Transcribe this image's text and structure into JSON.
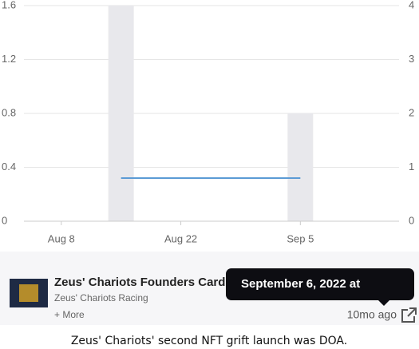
{
  "chart_data": {
    "type": "bar-line",
    "x": [
      "Aug 15",
      "Sep 5"
    ],
    "xlim": [
      "Aug 4",
      "Sep 16"
    ],
    "xticks": [
      "Aug 8",
      "Aug 22",
      "Sep 5"
    ],
    "ylim": [
      0,
      1.6
    ],
    "yticks": [
      0,
      0.4,
      0.8,
      1.2,
      1.6
    ],
    "y2lim": [
      0,
      4
    ],
    "y2ticks": [
      0,
      1,
      2,
      3,
      4
    ],
    "grid": true,
    "series": [
      {
        "type": "bar",
        "axis": "y2",
        "color": "#e8e8ec",
        "values": [
          4,
          2
        ]
      },
      {
        "type": "line",
        "color": "#5b9bd5",
        "values": [
          0.32,
          0.32
        ]
      }
    ]
  },
  "card": {
    "title": "Zeus' Chariots Founders Card",
    "subtitle": "Zeus' Chariots Racing",
    "more": "+ More",
    "time": "10mo ago"
  },
  "tooltip": "September 6, 2022 at",
  "caption": "Zeus' Chariots' second NFT grift launch was DOA."
}
